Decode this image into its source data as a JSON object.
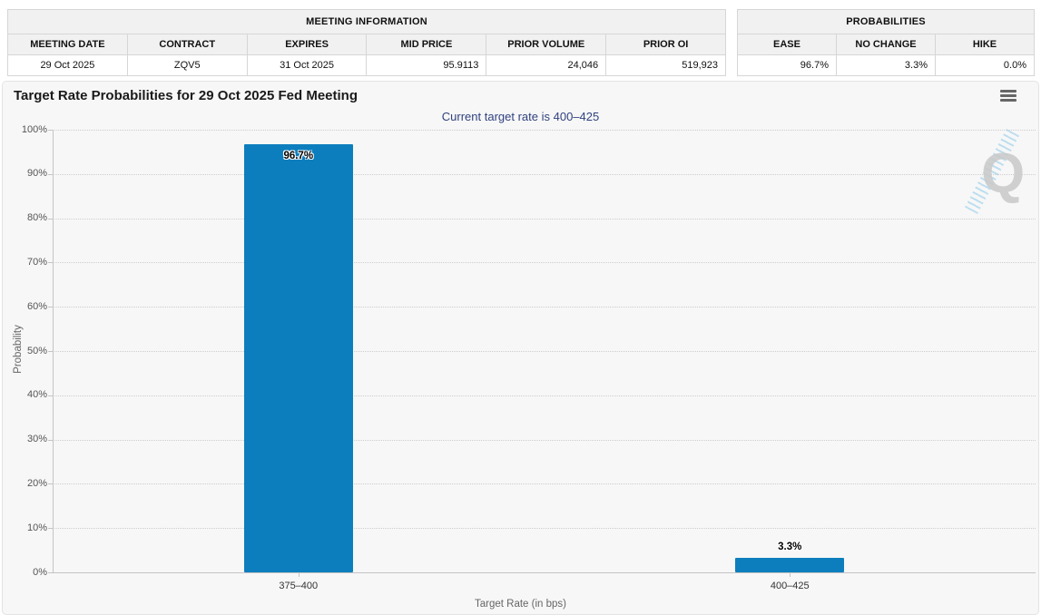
{
  "meeting_info_table": {
    "title": "MEETING INFORMATION",
    "columns": [
      "MEETING DATE",
      "CONTRACT",
      "EXPIRES",
      "MID PRICE",
      "PRIOR VOLUME",
      "PRIOR OI"
    ],
    "row": [
      "29 Oct 2025",
      "ZQV5",
      "31 Oct 2025",
      "95.9113",
      "24,046",
      "519,923"
    ]
  },
  "probabilities_table": {
    "title": "PROBABILITIES",
    "columns": [
      "EASE",
      "NO CHANGE",
      "HIKE"
    ],
    "row": [
      "96.7%",
      "3.3%",
      "0.0%"
    ]
  },
  "chart": {
    "title": "Target Rate Probabilities for 29 Oct 2025 Fed Meeting",
    "subtitle": "Current target rate is 400–425",
    "menu_icon": "hamburger-icon"
  },
  "chart_data": {
    "type": "bar",
    "categories": [
      "375–400",
      "400–425"
    ],
    "values": [
      96.7,
      3.3
    ],
    "value_labels": [
      "96.7%",
      "3.3%"
    ],
    "title": "Target Rate Probabilities for 29 Oct 2025 Fed Meeting",
    "subtitle": "Current target rate is 400–425",
    "xlabel": "Target Rate (in bps)",
    "ylabel": "Probability",
    "ylim": [
      0,
      100
    ],
    "ytick_step": 10,
    "ytick_suffix": "%",
    "grid": "dotted-horizontal",
    "legend": "none",
    "bar_color": "#0d7ebd"
  },
  "watermark": {
    "letter": "Q"
  },
  "colors": {
    "bar": "#0d7ebd",
    "subtitle_text": "#31427f",
    "panel_bg": "#f7f7f7",
    "table_header_bg": "#f1f1f1",
    "table_border": "#d6d6d6",
    "grid_dots": "#cdcdcd",
    "axis_line": "#c4c4c4",
    "muted_text": "#666666",
    "watermark_gray": "#c9c9c9",
    "watermark_blue": "#8ec9e8"
  }
}
